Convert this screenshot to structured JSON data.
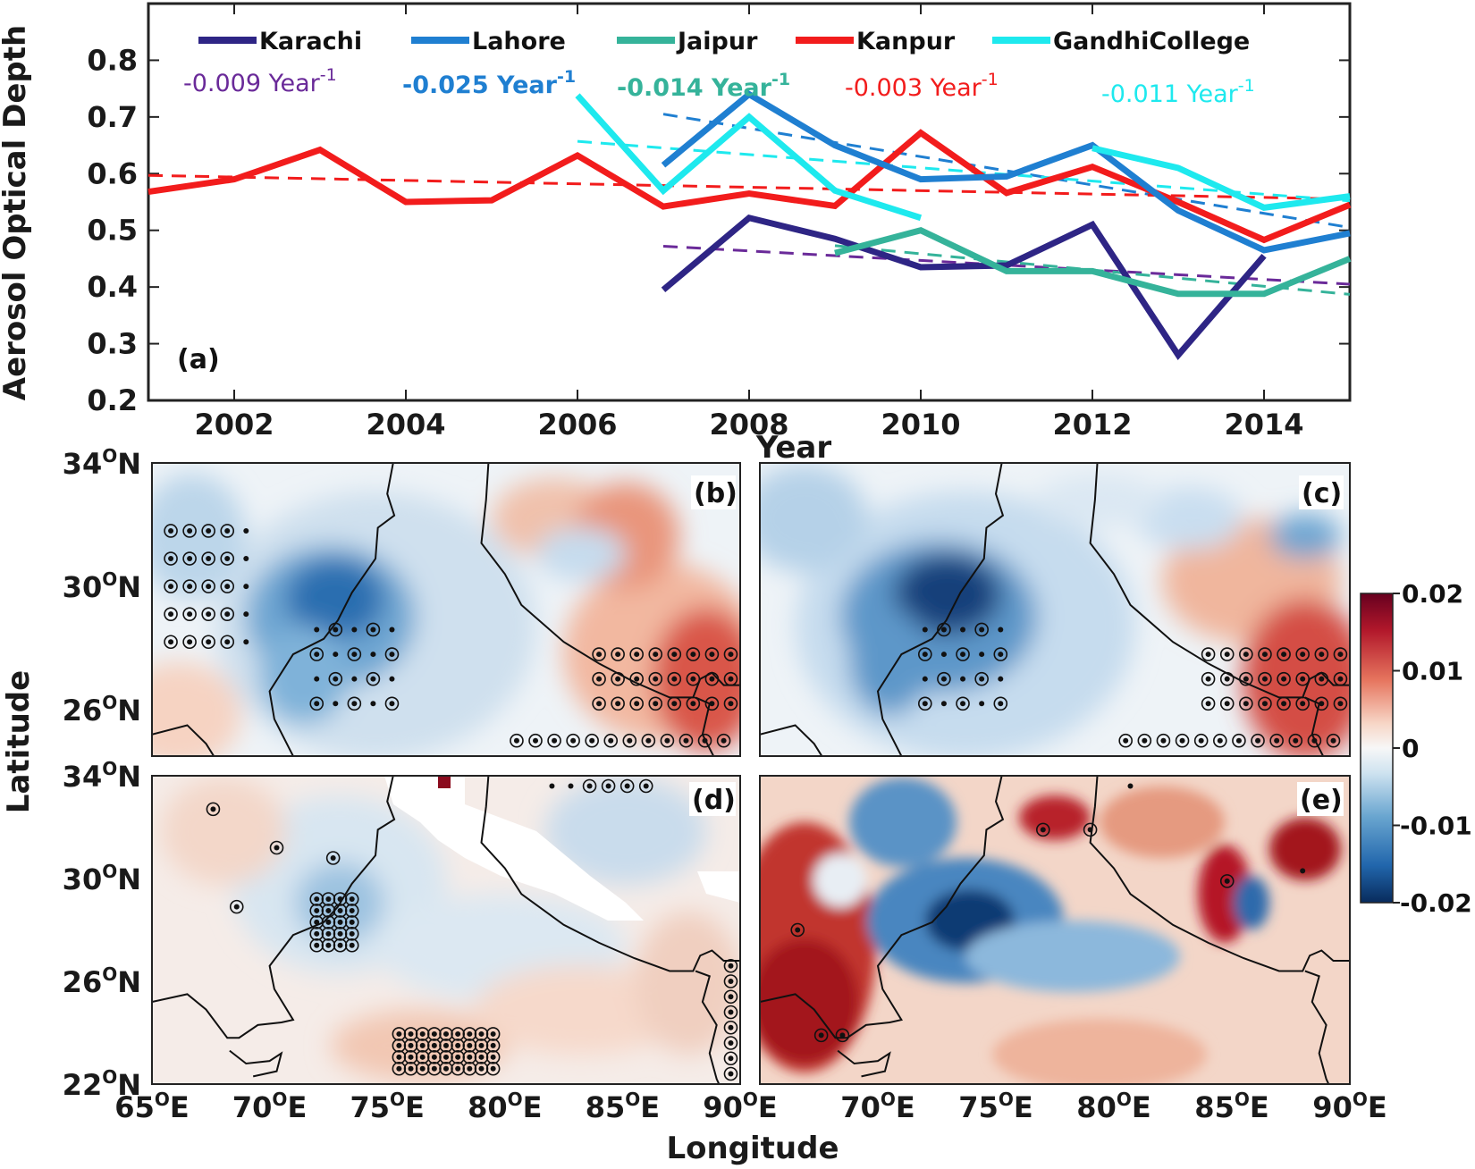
{
  "colors": {
    "Karachi": "#2e2585",
    "Lahore": "#1f7fd1",
    "Jaipur": "#35b39a",
    "Kanpur": "#f21c1c",
    "GandhiCollege": "#1ee9ee",
    "trend_Karachi": "#6a2a99"
  },
  "chart_data": [
    {
      "panel": "a",
      "type": "line",
      "panel_label": "(a)",
      "xlabel": "Year",
      "ylabel": "Aerosol Optical Depth",
      "xlim": [
        2001,
        2015
      ],
      "ylim": [
        0.2,
        0.9
      ],
      "xticks": [
        "2002",
        "2004",
        "2006",
        "2008",
        "2010",
        "2012",
        "2014"
      ],
      "yticks": [
        "0.2",
        "0.3",
        "0.4",
        "0.5",
        "0.6",
        "0.7",
        "0.8"
      ],
      "series": [
        {
          "name": "Karachi",
          "x": [
            2007,
            2008,
            2009,
            2010,
            2011,
            2012,
            2013,
            2014
          ],
          "y": [
            0.395,
            0.522,
            0.485,
            0.435,
            0.438,
            0.51,
            0.28,
            0.455
          ],
          "trend_label": "-0.009 Year",
          "trend": [
            [
              2007,
              0.472
            ],
            [
              2015,
              0.405
            ]
          ]
        },
        {
          "name": "Lahore",
          "x": [
            2007,
            2008,
            2009,
            2010,
            2011,
            2012,
            2013,
            2014,
            2015
          ],
          "y": [
            0.615,
            0.74,
            0.65,
            0.59,
            0.595,
            0.65,
            0.535,
            0.465,
            0.495
          ],
          "trend_label": "-0.025 Year",
          "trend": [
            [
              2007,
              0.705
            ],
            [
              2015,
              0.505
            ]
          ]
        },
        {
          "name": "Jaipur",
          "x": [
            2009,
            2010,
            2011,
            2012,
            2013,
            2014,
            2015
          ],
          "y": [
            0.46,
            0.5,
            0.428,
            0.428,
            0.388,
            0.388,
            0.45
          ],
          "trend_label": "-0.014 Year",
          "trend": [
            [
              2009,
              0.473
            ],
            [
              2015,
              0.387
            ]
          ]
        },
        {
          "name": "Kanpur",
          "x": [
            2001,
            2002,
            2003,
            2004,
            2005,
            2006,
            2007,
            2008,
            2009,
            2010,
            2011,
            2012,
            2013,
            2014,
            2015
          ],
          "y": [
            0.568,
            0.59,
            0.642,
            0.55,
            0.553,
            0.632,
            0.542,
            0.565,
            0.543,
            0.672,
            0.566,
            0.612,
            0.55,
            0.483,
            0.545
          ],
          "trend_label": "-0.003 Year",
          "trend": [
            [
              2001,
              0.597
            ],
            [
              2015,
              0.555
            ]
          ]
        },
        {
          "name": "GandhiCollege",
          "x": [
            2006,
            2007,
            2008,
            2009,
            2010
          ],
          "y": [
            0.738,
            0.57,
            0.7,
            0.57,
            0.522
          ],
          "x2": [
            2012,
            2013,
            2014,
            2015
          ],
          "y2": [
            0.645,
            0.61,
            0.54,
            0.56
          ],
          "trend_label": "-0.011 Year",
          "trend": [
            [
              2006,
              0.657
            ],
            [
              2015,
              0.552
            ]
          ]
        }
      ],
      "trend_superscript": "-1"
    },
    {
      "panel": "b-e",
      "type": "heatmap",
      "panel_labels": [
        "(b)",
        "(c)",
        "(d)",
        "(e)"
      ],
      "xlabel": "Longitude",
      "ylabel": "Latitude",
      "xlim": [
        65,
        90
      ],
      "ylim": [
        22,
        34
      ],
      "xticks": [
        "65",
        "70",
        "75",
        "80",
        "85",
        "90"
      ],
      "yticks_bc": [
        "34",
        "30",
        "26"
      ],
      "yticks_de": [
        "34",
        "30",
        "26",
        "22"
      ],
      "colorbar": {
        "ticks": [
          "0.02",
          "0.01",
          "0",
          "-0.01",
          "-0.02"
        ],
        "min": -0.02,
        "max": 0.02,
        "colormap": "RdBu_r"
      },
      "description_markers": "dots = significant trend, circled dots = strongly significant"
    }
  ],
  "text": {
    "deg_symbol": "O",
    "N": "N",
    "E": "E"
  }
}
